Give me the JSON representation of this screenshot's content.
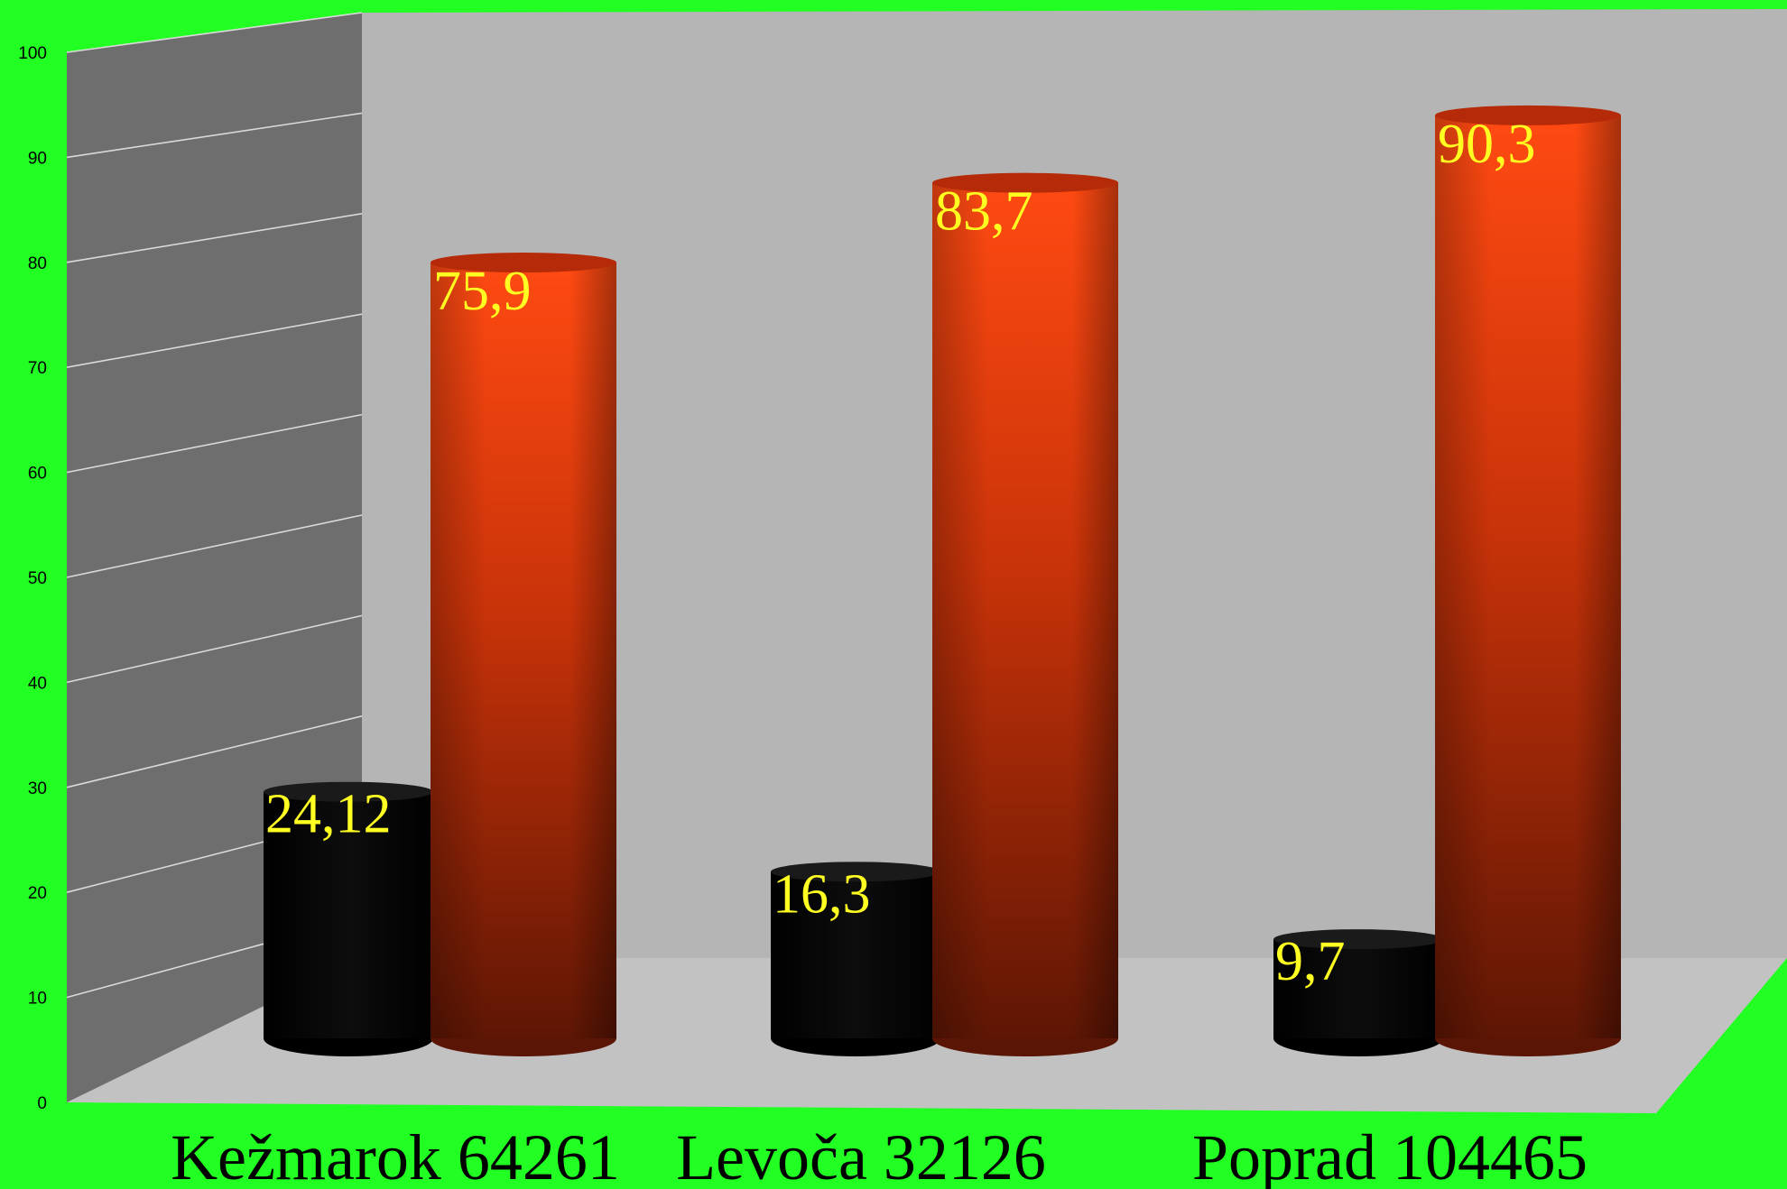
{
  "colors": {
    "background": "#22ff22",
    "back_wall": "#b5b5b5",
    "side_wall": "#6e6e6e",
    "floor": "#c2c2c2",
    "series_1": "#050505",
    "series_2": "#d8360d",
    "data_label": "#ffff22"
  },
  "chart_data": {
    "type": "bar",
    "style": "3d-cylinder",
    "title": "",
    "xlabel": "",
    "ylabel": "",
    "ylim": [
      0,
      100
    ],
    "yticks": [
      0,
      10,
      20,
      30,
      40,
      50,
      60,
      70,
      80,
      90,
      100
    ],
    "grid": true,
    "legend": "none",
    "categories": [
      "Kežmarok 64261",
      "Levoča 32126",
      "Poprad 104465"
    ],
    "series": [
      {
        "values": [
          24.12,
          16.3,
          9.7
        ],
        "labels": [
          "24,12",
          "16,3",
          "9,7"
        ],
        "color": "#050505"
      },
      {
        "values": [
          75.9,
          83.7,
          90.3
        ],
        "labels": [
          "75,9",
          "83,7",
          "90,3"
        ],
        "color": "#d8360d"
      }
    ]
  }
}
